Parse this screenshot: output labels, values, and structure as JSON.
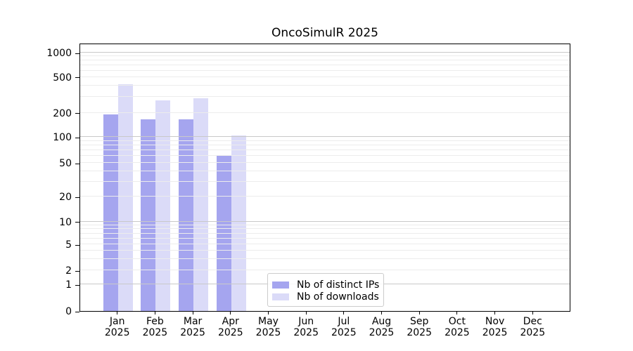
{
  "title": "OncoSimulR 2025",
  "colors": {
    "distinct_ips": "#a5a5ef",
    "downloads": "#dbdbf8",
    "grid_major": "#c9c9c9",
    "grid_minor": "#ececec",
    "axis": "#000000",
    "legend_border": "#cccccc",
    "background": "#ffffff"
  },
  "y_axis": {
    "tick_labels": [
      "0",
      "1",
      "2",
      "5",
      "10",
      "20",
      "50",
      "100",
      "200",
      "500",
      "1000"
    ]
  },
  "x_axis": {
    "months": [
      "Jan",
      "Feb",
      "Mar",
      "Apr",
      "May",
      "Jun",
      "Jul",
      "Aug",
      "Sep",
      "Oct",
      "Nov",
      "Dec"
    ],
    "year": "2025"
  },
  "legend": {
    "items": [
      {
        "label": "Nb of distinct IPs",
        "color": "#a5a5ef"
      },
      {
        "label": "Nb of downloads",
        "color": "#dbdbf8"
      }
    ]
  },
  "chart_data": {
    "type": "bar",
    "title": "OncoSimulR 2025",
    "categories": [
      "Jan 2025",
      "Feb 2025",
      "Mar 2025",
      "Apr 2025",
      "May 2025",
      "Jun 2025",
      "Jul 2025",
      "Aug 2025",
      "Sep 2025",
      "Oct 2025",
      "Nov 2025",
      "Dec 2025"
    ],
    "series": [
      {
        "name": "Nb of distinct IPs",
        "color": "#a5a5ef",
        "values": [
          190,
          165,
          165,
          60,
          0,
          0,
          0,
          0,
          0,
          0,
          0,
          0
        ]
      },
      {
        "name": "Nb of downloads",
        "color": "#dbdbf8",
        "values": [
          415,
          275,
          290,
          105,
          0,
          0,
          0,
          0,
          0,
          0,
          0,
          0
        ]
      }
    ],
    "xlabel": "",
    "ylabel": "",
    "y_scale": "symlog",
    "y_ticks": [
      0,
      1,
      2,
      5,
      10,
      20,
      50,
      100,
      200,
      500,
      1000
    ],
    "ylim": [
      0,
      1400
    ],
    "grid": "horizontal major and minor, drawn above bars",
    "legend_position": "inside bottom-center"
  }
}
